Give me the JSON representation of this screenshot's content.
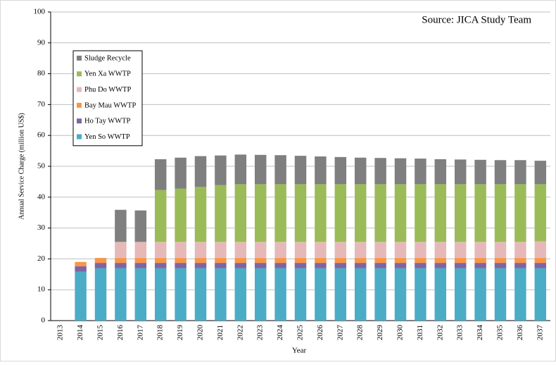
{
  "chart_data": {
    "type": "stacked_bar",
    "source": "Source: JICA Study Team",
    "xlabel": "Year",
    "ylabel": "Annual Service Charge (million US$)",
    "categories": [
      "2013",
      "2014",
      "2015",
      "2016",
      "2017",
      "2018",
      "2019",
      "2020",
      "2021",
      "2022",
      "2023",
      "2024",
      "2025",
      "2026",
      "2027",
      "2028",
      "2029",
      "2030",
      "2031",
      "2032",
      "2033",
      "2034",
      "2035",
      "2036",
      "2037"
    ],
    "series": [
      {
        "name": "Yen So WWTP",
        "color": "#4bacc6",
        "values": [
          0,
          15.8,
          17,
          17,
          17,
          17,
          17,
          17,
          17,
          17,
          17,
          17,
          17,
          17,
          17,
          17,
          17,
          17,
          17,
          17,
          17,
          17,
          17,
          17,
          17
        ]
      },
      {
        "name": "Ho Tay WWTP",
        "color": "#8064a2",
        "values": [
          0,
          1.8,
          1.7,
          1.7,
          1.7,
          1.7,
          1.7,
          1.7,
          1.7,
          1.7,
          1.7,
          1.7,
          1.7,
          1.7,
          1.7,
          1.7,
          1.7,
          1.7,
          1.7,
          1.7,
          1.7,
          1.7,
          1.7,
          1.7,
          1.7
        ]
      },
      {
        "name": "Bay Mau WWTP",
        "color": "#f79646",
        "values": [
          0,
          1.4,
          1.6,
          1.6,
          1.6,
          1.6,
          1.6,
          1.6,
          1.6,
          1.6,
          1.6,
          1.6,
          1.6,
          1.6,
          1.6,
          1.6,
          1.6,
          1.6,
          1.6,
          1.6,
          1.6,
          1.6,
          1.6,
          1.6,
          1.6
        ]
      },
      {
        "name": "Phu Do WWTP",
        "color": "#e6b9b8",
        "values": [
          0,
          0,
          0,
          5.2,
          5.2,
          5.2,
          5.2,
          5.2,
          5.2,
          5.2,
          5.2,
          5.2,
          5.2,
          5.2,
          5.2,
          5.2,
          5.2,
          5.2,
          5.2,
          5.2,
          5.2,
          5.2,
          5.2,
          5.2,
          5.4
        ]
      },
      {
        "name": "Yen Xa WWTP",
        "color": "#9bbb59",
        "values": [
          0,
          0,
          0,
          0,
          0,
          16.8,
          17.3,
          17.8,
          18.4,
          18.7,
          18.7,
          18.7,
          18.7,
          18.7,
          18.7,
          18.7,
          18.7,
          18.7,
          18.7,
          18.7,
          18.7,
          18.7,
          18.7,
          18.7,
          18.5
        ]
      },
      {
        "name": "Sludge Recycle",
        "color": "#7f7f7f",
        "values": [
          0,
          0,
          0,
          10.4,
          10.2,
          10,
          10,
          10,
          9.6,
          9.6,
          9.5,
          9.4,
          9.2,
          9,
          8.8,
          8.6,
          8.5,
          8.4,
          8.3,
          8.1,
          8,
          7.9,
          7.8,
          7.8,
          7.6
        ]
      }
    ],
    "ylim": [
      0,
      100
    ],
    "yticks": [
      0,
      10,
      20,
      30,
      40,
      50,
      60,
      70,
      80,
      90,
      100
    ],
    "grid": true,
    "legend": "upper left"
  }
}
